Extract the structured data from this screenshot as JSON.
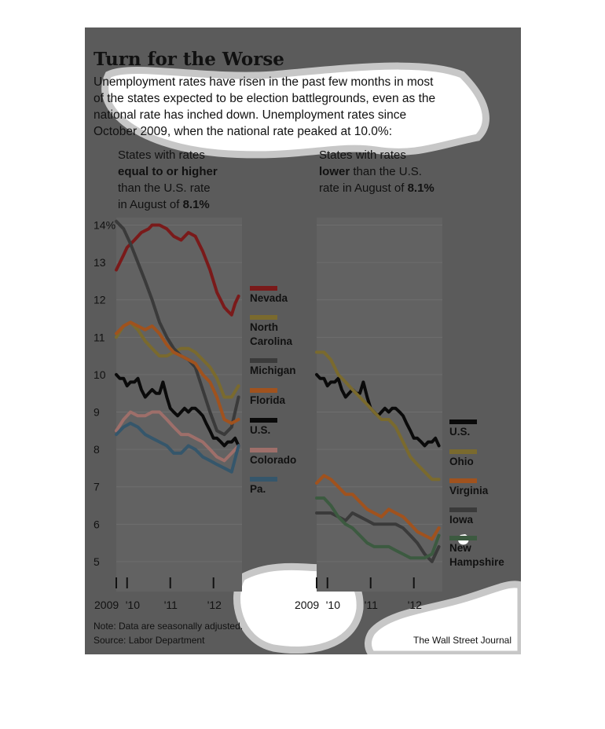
{
  "header": {
    "title": "Turn for the Worse",
    "intro": [
      "Unemployment rates have risen in the past few months in most",
      "of the states expected to be election battlegrounds, even as the",
      "national rate has inched down. Unemployment rates since",
      "October 2009, when the national rate peaked at 10.0%:"
    ]
  },
  "footer": {
    "note": "Note: Data are seasonally adjusted.",
    "source": "Source: Labor Department",
    "credit": "The Wall Street Journal"
  },
  "colors": {
    "background": "#5b5b5b",
    "plot_background": "#626262",
    "gridline": "#6e6e6e",
    "text": "#111111",
    "highlight_blob": "#ffffff"
  },
  "chart_data": [
    {
      "type": "line",
      "subtitle": [
        {
          "parts": [
            {
              "text": "States with rates",
              "bold": false
            }
          ]
        },
        {
          "parts": [
            {
              "text": "equal to or higher",
              "bold": true
            }
          ]
        },
        {
          "parts": [
            {
              "text": "than the U.S. rate",
              "bold": false
            }
          ]
        },
        {
          "parts": [
            {
              "text": "in August of ",
              "bold": false
            },
            {
              "text": "8.1%",
              "bold": true
            }
          ]
        }
      ],
      "y_ticks": [
        "14%",
        "13",
        "12",
        "11",
        "10",
        "9",
        "8",
        "7",
        "6",
        "5"
      ],
      "x_ticks": [
        "2009",
        "'10",
        "'11",
        "'12"
      ],
      "ylim": [
        4.2,
        14.2
      ],
      "xlim": [
        2009.75,
        2012.66
      ],
      "grid": true,
      "series": [
        {
          "name": "Nevada",
          "color": "#7a1a1a",
          "x": [
            2009.75,
            2009.92,
            2010.0,
            2010.17,
            2010.33,
            2010.5,
            2010.58,
            2010.75,
            2010.92,
            2011.08,
            2011.25,
            2011.42,
            2011.58,
            2011.75,
            2011.92,
            2012.08,
            2012.25,
            2012.33,
            2012.42,
            2012.5,
            2012.58
          ],
          "y": [
            12.8,
            13.2,
            13.4,
            13.6,
            13.8,
            13.9,
            14.0,
            14.0,
            13.9,
            13.7,
            13.6,
            13.8,
            13.7,
            13.3,
            12.8,
            12.2,
            11.8,
            11.7,
            11.6,
            11.9,
            12.1
          ]
        },
        {
          "name": "North Carolina",
          "color": "#7a6a2e",
          "x": [
            2009.75,
            2009.92,
            2010.08,
            2010.25,
            2010.42,
            2010.58,
            2010.75,
            2010.92,
            2011.08,
            2011.25,
            2011.42,
            2011.58,
            2011.75,
            2011.92,
            2012.08,
            2012.25,
            2012.42,
            2012.58
          ],
          "y": [
            11.0,
            11.3,
            11.4,
            11.2,
            10.9,
            10.7,
            10.5,
            10.5,
            10.6,
            10.7,
            10.7,
            10.6,
            10.4,
            10.2,
            9.9,
            9.4,
            9.4,
            9.7
          ]
        },
        {
          "name": "Michigan",
          "color": "#3a3a3a",
          "x": [
            2009.75,
            2009.92,
            2010.08,
            2010.25,
            2010.42,
            2010.58,
            2010.75,
            2010.92,
            2011.08,
            2011.25,
            2011.42,
            2011.58,
            2011.75,
            2011.92,
            2012.08,
            2012.25,
            2012.42,
            2012.58
          ],
          "y": [
            14.1,
            13.9,
            13.5,
            13.0,
            12.5,
            12.0,
            11.4,
            11.0,
            10.7,
            10.5,
            10.4,
            10.2,
            9.6,
            9.0,
            8.5,
            8.4,
            8.6,
            9.4
          ]
        },
        {
          "name": "Florida",
          "color": "#a0521e",
          "x": [
            2009.75,
            2009.92,
            2010.08,
            2010.25,
            2010.42,
            2010.58,
            2010.75,
            2010.92,
            2011.08,
            2011.25,
            2011.42,
            2011.58,
            2011.75,
            2011.92,
            2012.08,
            2012.25,
            2012.42,
            2012.58
          ],
          "y": [
            11.1,
            11.3,
            11.4,
            11.3,
            11.2,
            11.3,
            11.1,
            10.8,
            10.6,
            10.5,
            10.4,
            10.3,
            10.0,
            9.8,
            9.4,
            8.8,
            8.7,
            8.8
          ]
        },
        {
          "name": "U.S.",
          "color": "#0a0a0a",
          "x": [
            2009.75,
            2009.83,
            2009.92,
            2010.0,
            2010.08,
            2010.17,
            2010.25,
            2010.33,
            2010.42,
            2010.5,
            2010.58,
            2010.67,
            2010.75,
            2010.83,
            2010.92,
            2011.0,
            2011.08,
            2011.17,
            2011.25,
            2011.33,
            2011.42,
            2011.5,
            2011.58,
            2011.67,
            2011.75,
            2011.83,
            2011.92,
            2012.0,
            2012.08,
            2012.17,
            2012.25,
            2012.33,
            2012.42,
            2012.5,
            2012.58
          ],
          "y": [
            10.0,
            9.9,
            9.9,
            9.7,
            9.8,
            9.8,
            9.9,
            9.6,
            9.4,
            9.5,
            9.6,
            9.5,
            9.5,
            9.8,
            9.4,
            9.1,
            9.0,
            8.9,
            9.0,
            9.1,
            9.0,
            9.1,
            9.1,
            9.0,
            8.9,
            8.7,
            8.5,
            8.3,
            8.3,
            8.2,
            8.1,
            8.2,
            8.2,
            8.3,
            8.1
          ]
        },
        {
          "name": "Colorado",
          "color": "#9e6f6a",
          "x": [
            2009.75,
            2009.92,
            2010.08,
            2010.25,
            2010.42,
            2010.58,
            2010.75,
            2010.92,
            2011.08,
            2011.25,
            2011.42,
            2011.58,
            2011.75,
            2011.92,
            2012.08,
            2012.25,
            2012.42,
            2012.58
          ],
          "y": [
            8.5,
            8.8,
            9.0,
            8.9,
            8.9,
            9.0,
            9.0,
            8.8,
            8.6,
            8.4,
            8.4,
            8.3,
            8.2,
            8.0,
            7.8,
            7.7,
            7.9,
            8.1
          ]
        },
        {
          "name": "Pa.",
          "color": "#35566b",
          "x": [
            2009.75,
            2009.92,
            2010.08,
            2010.25,
            2010.42,
            2010.58,
            2010.75,
            2010.92,
            2011.08,
            2011.25,
            2011.42,
            2011.58,
            2011.75,
            2011.92,
            2012.08,
            2012.25,
            2012.42,
            2012.58
          ],
          "y": [
            8.4,
            8.6,
            8.7,
            8.6,
            8.4,
            8.3,
            8.2,
            8.1,
            7.9,
            7.9,
            8.1,
            8.0,
            7.8,
            7.7,
            7.6,
            7.5,
            7.4,
            8.1
          ]
        }
      ]
    },
    {
      "type": "line",
      "subtitle": [
        {
          "parts": [
            {
              "text": "States with rates",
              "bold": false
            }
          ]
        },
        {
          "parts": [
            {
              "text": "lower",
              "bold": true
            },
            {
              "text": " than the U.S.",
              "bold": false
            }
          ]
        },
        {
          "parts": [
            {
              "text": "rate in August of ",
              "bold": false
            },
            {
              "text": "8.1%",
              "bold": true
            }
          ]
        }
      ],
      "x_ticks": [
        "2009",
        "'10",
        "'11",
        "'12"
      ],
      "ylim": [
        4.2,
        14.2
      ],
      "xlim": [
        2009.75,
        2012.66
      ],
      "grid": true,
      "series": [
        {
          "name": "U.S.",
          "color": "#0a0a0a",
          "x": [
            2009.75,
            2009.83,
            2009.92,
            2010.0,
            2010.08,
            2010.17,
            2010.25,
            2010.33,
            2010.42,
            2010.5,
            2010.58,
            2010.67,
            2010.75,
            2010.83,
            2010.92,
            2011.0,
            2011.08,
            2011.17,
            2011.25,
            2011.33,
            2011.42,
            2011.5,
            2011.58,
            2011.67,
            2011.75,
            2011.83,
            2011.92,
            2012.0,
            2012.08,
            2012.17,
            2012.25,
            2012.33,
            2012.42,
            2012.5,
            2012.58
          ],
          "y": [
            10.0,
            9.9,
            9.9,
            9.7,
            9.8,
            9.8,
            9.9,
            9.6,
            9.4,
            9.5,
            9.6,
            9.5,
            9.5,
            9.8,
            9.4,
            9.1,
            9.0,
            8.9,
            9.0,
            9.1,
            9.0,
            9.1,
            9.1,
            9.0,
            8.9,
            8.7,
            8.5,
            8.3,
            8.3,
            8.2,
            8.1,
            8.2,
            8.2,
            8.3,
            8.1
          ]
        },
        {
          "name": "Ohio",
          "color": "#7a6a2e",
          "x": [
            2009.75,
            2009.92,
            2010.08,
            2010.25,
            2010.42,
            2010.58,
            2010.75,
            2010.92,
            2011.08,
            2011.25,
            2011.42,
            2011.58,
            2011.75,
            2011.92,
            2012.08,
            2012.25,
            2012.42,
            2012.58
          ],
          "y": [
            10.6,
            10.6,
            10.4,
            10.0,
            9.8,
            9.6,
            9.4,
            9.2,
            9.0,
            8.8,
            8.8,
            8.6,
            8.2,
            7.8,
            7.6,
            7.4,
            7.2,
            7.2
          ]
        },
        {
          "name": "Virginia",
          "color": "#a0521e",
          "x": [
            2009.75,
            2009.92,
            2010.08,
            2010.25,
            2010.42,
            2010.58,
            2010.75,
            2010.92,
            2011.08,
            2011.25,
            2011.42,
            2011.58,
            2011.75,
            2011.92,
            2012.08,
            2012.25,
            2012.42,
            2012.58
          ],
          "y": [
            7.1,
            7.3,
            7.2,
            7.0,
            6.8,
            6.8,
            6.6,
            6.4,
            6.3,
            6.2,
            6.4,
            6.3,
            6.2,
            6.0,
            5.8,
            5.7,
            5.6,
            5.9
          ]
        },
        {
          "name": "Iowa",
          "color": "#3a3a3a",
          "x": [
            2009.75,
            2009.92,
            2010.08,
            2010.25,
            2010.42,
            2010.58,
            2010.75,
            2010.92,
            2011.08,
            2011.25,
            2011.42,
            2011.58,
            2011.75,
            2011.92,
            2012.08,
            2012.25,
            2012.42,
            2012.58
          ],
          "y": [
            6.3,
            6.3,
            6.3,
            6.2,
            6.1,
            6.3,
            6.2,
            6.1,
            6.0,
            6.0,
            6.0,
            6.0,
            5.9,
            5.7,
            5.5,
            5.2,
            5.0,
            5.4
          ]
        },
        {
          "name": "New Hampshire",
          "color": "#3c5a40",
          "x": [
            2009.75,
            2009.92,
            2010.08,
            2010.25,
            2010.42,
            2010.58,
            2010.75,
            2010.92,
            2011.08,
            2011.25,
            2011.42,
            2011.58,
            2011.75,
            2011.92,
            2012.08,
            2012.25,
            2012.42,
            2012.58
          ],
          "y": [
            6.7,
            6.7,
            6.5,
            6.2,
            6.0,
            5.9,
            5.7,
            5.5,
            5.4,
            5.4,
            5.4,
            5.3,
            5.2,
            5.1,
            5.1,
            5.1,
            5.2,
            5.7
          ]
        }
      ]
    }
  ]
}
